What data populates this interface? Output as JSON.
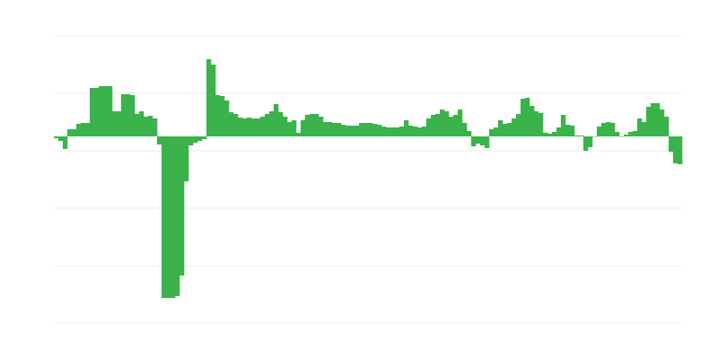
{
  "chart_data": {
    "type": "bar",
    "title": "",
    "xlabel": "",
    "ylabel": "",
    "ylim": [
      -208,
      112
    ],
    "gridlines": [
      112,
      48,
      -16,
      -80,
      -144,
      -208
    ],
    "grid": true,
    "legend": "none",
    "bar_color": "#39b34a",
    "grid_color": "#ebebeb",
    "values": [
      -2,
      -5,
      -14,
      8,
      8,
      14,
      15,
      15,
      54,
      54,
      56,
      56,
      56,
      28,
      28,
      47,
      47,
      46,
      25,
      28,
      22,
      23,
      20,
      -9,
      -180,
      -180,
      -180,
      -178,
      -155,
      -50,
      -10,
      -7,
      -5,
      -3,
      86,
      80,
      46,
      45,
      40,
      27,
      25,
      21,
      20,
      21,
      20,
      20,
      22,
      25,
      28,
      36,
      27,
      22,
      16,
      18,
      4,
      18,
      24,
      25,
      25,
      22,
      16,
      16,
      15,
      15,
      13,
      12,
      12,
      12,
      15,
      15,
      15,
      14,
      13,
      11,
      10,
      10,
      10,
      11,
      18,
      12,
      11,
      10,
      11,
      20,
      24,
      25,
      30,
      28,
      22,
      24,
      30,
      15,
      6,
      -11,
      -8,
      -10,
      -13,
      8,
      10,
      18,
      14,
      15,
      20,
      25,
      42,
      43,
      34,
      28,
      26,
      4,
      3,
      5,
      10,
      24,
      13,
      12,
      1,
      1,
      -16,
      -12,
      0,
      11,
      15,
      16,
      15,
      5,
      0,
      2,
      5,
      6,
      20,
      16,
      33,
      37,
      37,
      30,
      22,
      -17,
      -30,
      -31
    ]
  }
}
